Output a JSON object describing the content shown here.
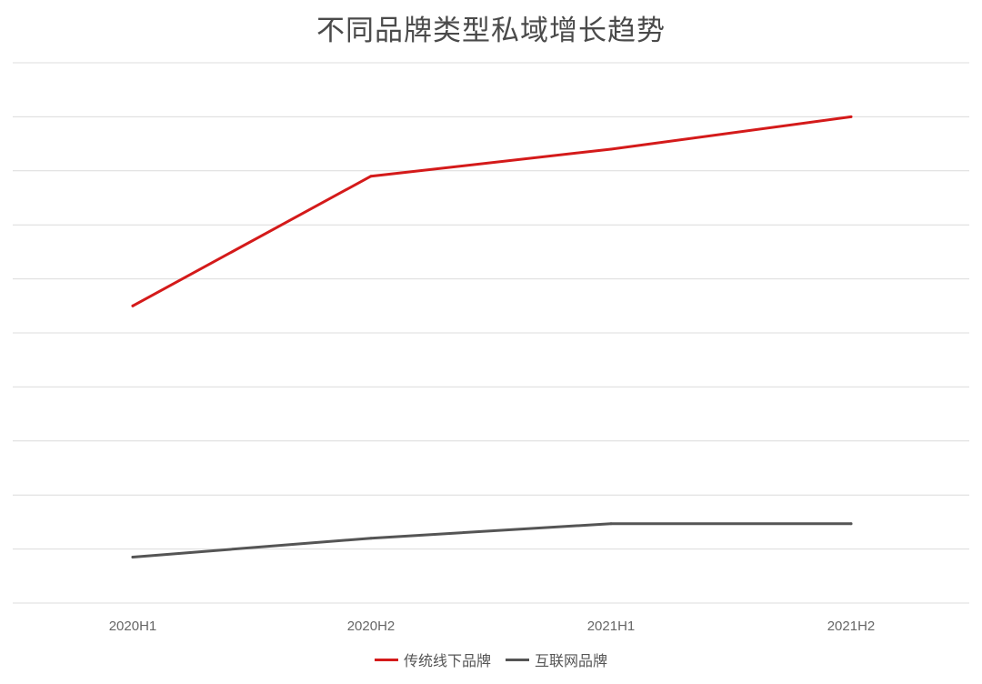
{
  "chart_data": {
    "type": "line",
    "title": "不同品牌类型私域增长趋势",
    "xlabel": "",
    "ylabel": "",
    "categories": [
      "2020H1",
      "2020H2",
      "2021H1",
      "2021H2"
    ],
    "ylim": [
      0,
      10
    ],
    "grid": true,
    "legend_position": "bottom",
    "series": [
      {
        "name": "传统线下品牌",
        "color": "#d41a1a",
        "values": [
          5.5,
          7.9,
          8.4,
          9.0
        ]
      },
      {
        "name": "互联网品牌",
        "color": "#555555",
        "values": [
          0.85,
          1.2,
          1.47,
          1.47
        ]
      }
    ]
  }
}
